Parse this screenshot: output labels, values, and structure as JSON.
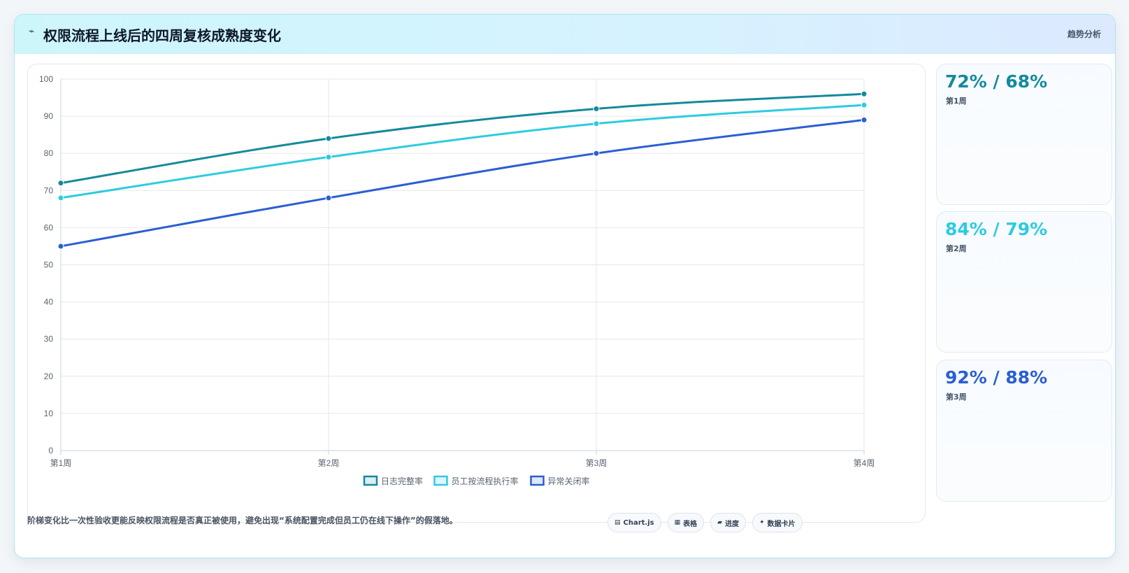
{
  "header": {
    "icon": "⌁",
    "title": "权限流程上线后的四周复核成熟度变化",
    "tag": "趋势分析"
  },
  "colors": {
    "series1": "#148a9c",
    "series2": "#2ecbe0",
    "series3": "#2a5fd3",
    "grid": "#e5e7eb"
  },
  "chart_data": {
    "type": "line",
    "categories": [
      "第1周",
      "第2周",
      "第3周",
      "第4周"
    ],
    "ylim": [
      0,
      100
    ],
    "yticks": [
      0,
      10,
      20,
      30,
      40,
      50,
      60,
      70,
      80,
      90,
      100
    ],
    "grid": true,
    "legend_position": "bottom",
    "series": [
      {
        "name": "日志完整率",
        "values": [
          72,
          84,
          92,
          96
        ]
      },
      {
        "name": "员工按流程执行率",
        "values": [
          68,
          79,
          88,
          93
        ]
      },
      {
        "name": "异常关闭率",
        "values": [
          55,
          68,
          80,
          89
        ]
      }
    ]
  },
  "side_cards": [
    {
      "value": "72% / 68%",
      "label": "第1周"
    },
    {
      "value": "84% / 79%",
      "label": "第2周"
    },
    {
      "value": "92% / 88%",
      "label": "第3周"
    }
  ],
  "footnote": "阶梯变化比一次性验收更能反映权限流程是否真正被使用，避免出现“系统配置完成但员工仍在线下操作”的假落地。",
  "chips": [
    {
      "icon": "▤",
      "label": "Chart.js"
    },
    {
      "icon": "▦",
      "label": "表格"
    },
    {
      "icon": "▰",
      "label": "进度"
    },
    {
      "icon": "✦",
      "label": "数据卡片"
    }
  ]
}
